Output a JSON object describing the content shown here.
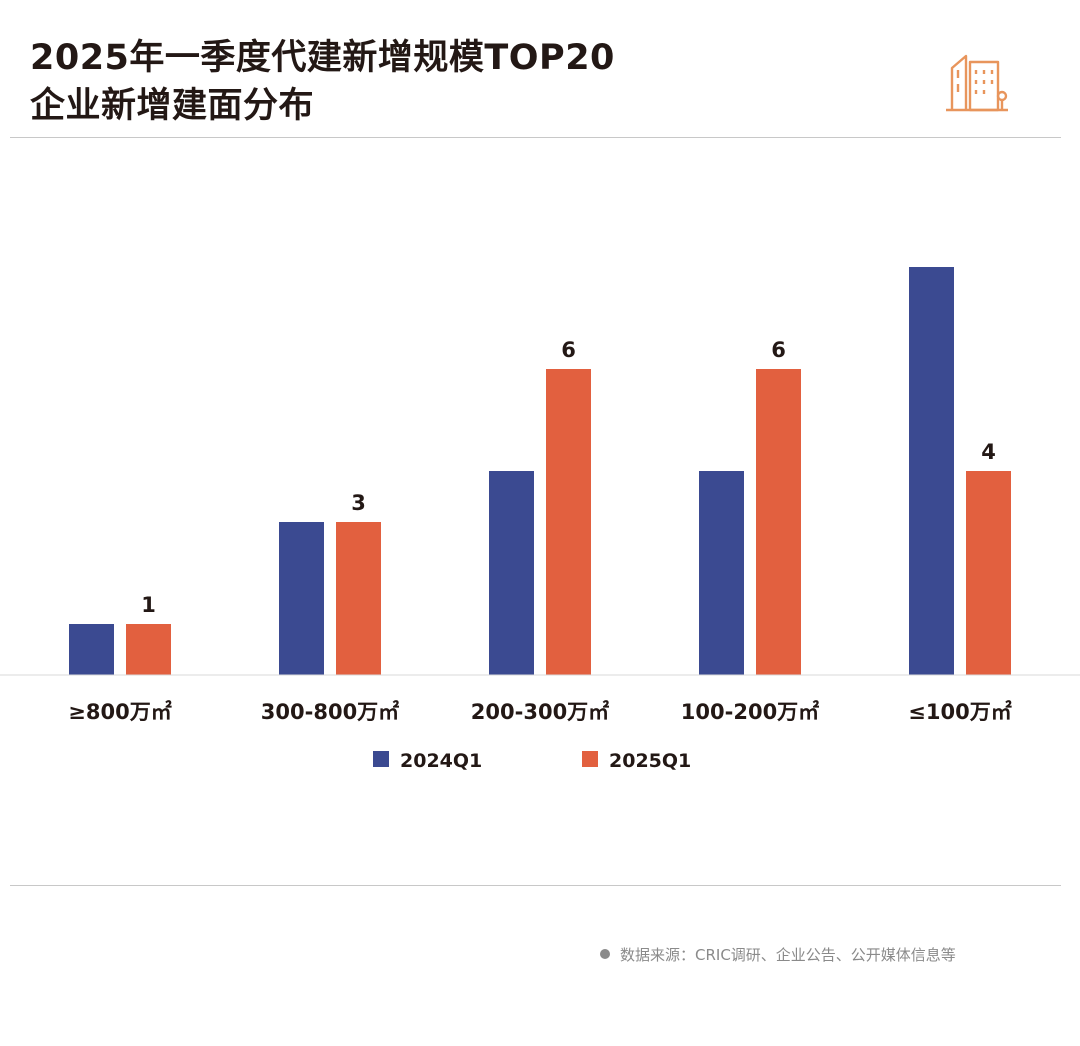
{
  "header": {
    "title_line1": "2025年一季度代建新增规模TOP20",
    "title_line2": "企业新增建面分布",
    "icon": "building-icon",
    "accent_color": "#e8955c"
  },
  "chart_data": {
    "type": "bar",
    "categories": [
      "≥800万㎡",
      "300-800万㎡",
      "200-300万㎡",
      "100-200万㎡",
      "≤100万㎡"
    ],
    "series": [
      {
        "name": "2024Q1",
        "values": [
          1,
          3,
          4,
          4,
          8
        ],
        "color": "#3b4a91",
        "labels_shown": false
      },
      {
        "name": "2025Q1",
        "values": [
          1,
          3,
          6,
          6,
          4
        ],
        "color": "#e2603f",
        "labels_shown": true
      }
    ],
    "ylim": [
      0,
      8
    ],
    "grid": false,
    "legend": "bottom-center"
  },
  "footer": {
    "source_text": "数据来源：CRIC调研、企业公告、公开媒体信息等"
  }
}
